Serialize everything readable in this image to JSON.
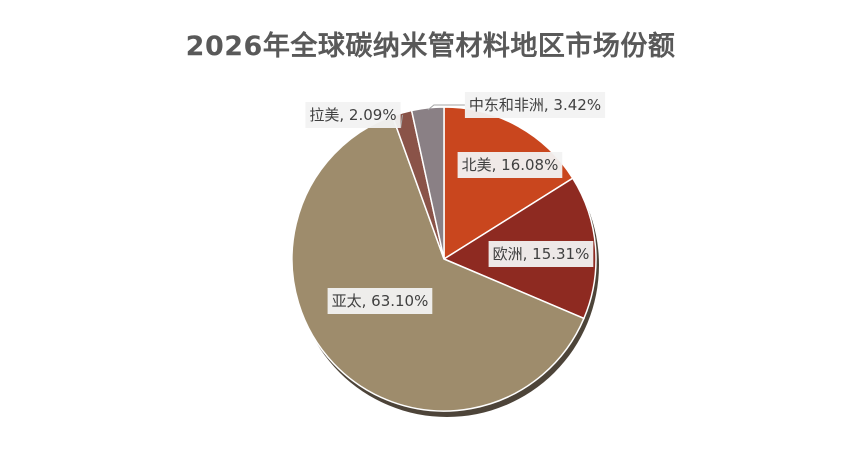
{
  "chart_data": {
    "type": "pie",
    "title": "2026年全球碳纳米管材料地区市场份额",
    "slices": [
      {
        "label": "北美",
        "value": 16.08,
        "display": "北美, 16.08%",
        "color": "#c9461e"
      },
      {
        "label": "欧洲",
        "value": 15.31,
        "display": "欧洲, 15.31%",
        "color": "#8e2a21"
      },
      {
        "label": "亚太",
        "value": 63.1,
        "display": "亚太, 63.10%",
        "color": "#9e8c6c"
      },
      {
        "label": "拉美",
        "value": 2.09,
        "display": "拉美, 2.09%",
        "color": "#8a5348"
      },
      {
        "label": "中东和非洲",
        "value": 3.42,
        "display": "中东和非洲, 3.42%",
        "color": "#8a8085"
      }
    ],
    "start_angle_deg": 0,
    "direction": "clockwise",
    "legend": "none",
    "data_labels": true
  }
}
